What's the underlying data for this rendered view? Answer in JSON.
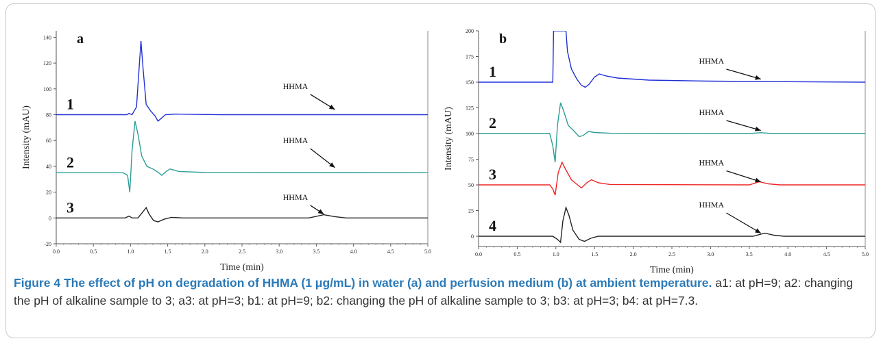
{
  "caption": {
    "label": "Figure 4",
    "title": "The effect of pH on degradation of HHMA (1 μg/mL) in water (a) and perfusion medium (b) at ambient temperature.",
    "text": "a1: at pH=9; a2: changing the pH of alkaline sample to 3; a3: at pH=3; b1: at pH=9; b2: changing the pH of alkaline sample to 3; b3: at pH=3; b4: at pH=7.3."
  },
  "chart_data": [
    {
      "type": "line",
      "panel_label": "a",
      "xlabel": "Time (min)",
      "ylabel": "Intensity (mAU)",
      "xlim": [
        0.0,
        5.0
      ],
      "ylim": [
        -20,
        145
      ],
      "x_ticks": [
        "0.0",
        "0.5",
        "1.0",
        "1.5",
        "2.0",
        "2.5",
        "3.0",
        "3.5",
        "4.0",
        "4.5",
        "5.0"
      ],
      "y_ticks": [
        "-20",
        "0",
        "20",
        "40",
        "60",
        "80",
        "100",
        "120",
        "140"
      ],
      "grid": false,
      "annotation_text": "HHMA",
      "series": [
        {
          "name": "1",
          "color": "#1f2fd6",
          "annotation_y": 100,
          "points": [
            [
              0,
              80
            ],
            [
              0.95,
              80
            ],
            [
              0.98,
              81
            ],
            [
              1.02,
              80
            ],
            [
              1.08,
              86
            ],
            [
              1.12,
              120
            ],
            [
              1.14,
              137
            ],
            [
              1.17,
              115
            ],
            [
              1.21,
              88
            ],
            [
              1.27,
              83
            ],
            [
              1.33,
              79
            ],
            [
              1.37,
              75
            ],
            [
              1.41,
              77
            ],
            [
              1.47,
              80
            ],
            [
              1.6,
              80.5
            ],
            [
              1.8,
              80.3
            ],
            [
              2.2,
              80
            ],
            [
              5,
              80
            ]
          ]
        },
        {
          "name": "2",
          "color": "#2a9d95",
          "annotation_y": 58,
          "points": [
            [
              0,
              35
            ],
            [
              0.9,
              35
            ],
            [
              0.96,
              33
            ],
            [
              0.99,
              20
            ],
            [
              1.02,
              52
            ],
            [
              1.06,
              75
            ],
            [
              1.1,
              65
            ],
            [
              1.15,
              48
            ],
            [
              1.22,
              40
            ],
            [
              1.3,
              38
            ],
            [
              1.38,
              35
            ],
            [
              1.42,
              33
            ],
            [
              1.48,
              36
            ],
            [
              1.53,
              38
            ],
            [
              1.65,
              36
            ],
            [
              2.0,
              35.3
            ],
            [
              5,
              35
            ]
          ]
        },
        {
          "name": "3",
          "color": "#222222",
          "annotation_y": 14,
          "points": [
            [
              0,
              0
            ],
            [
              0.93,
              0
            ],
            [
              0.98,
              1.5
            ],
            [
              1.02,
              0
            ],
            [
              1.1,
              0
            ],
            [
              1.17,
              5
            ],
            [
              1.21,
              8
            ],
            [
              1.25,
              3
            ],
            [
              1.31,
              -2
            ],
            [
              1.37,
              -3
            ],
            [
              1.45,
              -1
            ],
            [
              1.55,
              0.5
            ],
            [
              1.7,
              0
            ],
            [
              3.4,
              0
            ],
            [
              3.6,
              2.5
            ],
            [
              3.75,
              1
            ],
            [
              3.9,
              0
            ],
            [
              5,
              0
            ]
          ]
        }
      ]
    },
    {
      "type": "line",
      "panel_label": "b",
      "xlabel": "Time (min)",
      "ylabel": "Intensity (mAU)",
      "xlim": [
        0.0,
        5.0
      ],
      "ylim": [
        -10,
        200
      ],
      "x_ticks": [
        "0.0",
        "0.5",
        "1.0",
        "1.5",
        "2.0",
        "2.5",
        "3.0",
        "3.5",
        "4.0",
        "4.5",
        "5.0"
      ],
      "y_ticks": [
        "0",
        "25",
        "50",
        "75",
        "100",
        "125",
        "150",
        "175",
        "200"
      ],
      "grid": false,
      "annotation_text": "HHMA",
      "series": [
        {
          "name": "1",
          "color": "#1f2fd6",
          "annotation_y": 168,
          "points": [
            [
              0,
              150
            ],
            [
              0.96,
              150
            ],
            [
              0.97,
              200
            ],
            [
              1.13,
              200
            ],
            [
              1.15,
              180
            ],
            [
              1.2,
              163
            ],
            [
              1.27,
              153
            ],
            [
              1.33,
              147
            ],
            [
              1.38,
              145
            ],
            [
              1.43,
              148
            ],
            [
              1.5,
              155
            ],
            [
              1.56,
              158
            ],
            [
              1.65,
              156
            ],
            [
              1.8,
              154
            ],
            [
              2.2,
              152
            ],
            [
              3,
              151
            ],
            [
              4,
              150.5
            ],
            [
              5,
              150
            ]
          ]
        },
        {
          "name": "2",
          "color": "#2a9d95",
          "annotation_y": 118,
          "points": [
            [
              0,
              100
            ],
            [
              0.92,
              100
            ],
            [
              0.96,
              88
            ],
            [
              0.99,
              72
            ],
            [
              1.02,
              108
            ],
            [
              1.06,
              130
            ],
            [
              1.1,
              122
            ],
            [
              1.16,
              108
            ],
            [
              1.24,
              102
            ],
            [
              1.3,
              97
            ],
            [
              1.35,
              98
            ],
            [
              1.42,
              102
            ],
            [
              1.5,
              101
            ],
            [
              1.7,
              100.3
            ],
            [
              3.5,
              100
            ],
            [
              3.65,
              100.8
            ],
            [
              3.8,
              100
            ],
            [
              5,
              100
            ]
          ]
        },
        {
          "name": "3",
          "color": "#ee2424",
          "annotation_y": 69,
          "points": [
            [
              0,
              50
            ],
            [
              0.92,
              50
            ],
            [
              0.96,
              46
            ],
            [
              0.99,
              40
            ],
            [
              1.03,
              62
            ],
            [
              1.08,
              72
            ],
            [
              1.12,
              66
            ],
            [
              1.2,
              55
            ],
            [
              1.28,
              50
            ],
            [
              1.33,
              47
            ],
            [
              1.4,
              52
            ],
            [
              1.46,
              55
            ],
            [
              1.55,
              52
            ],
            [
              1.7,
              50.4
            ],
            [
              3.5,
              50
            ],
            [
              3.63,
              53
            ],
            [
              3.75,
              51
            ],
            [
              3.9,
              50
            ],
            [
              5,
              50
            ]
          ]
        },
        {
          "name": "4",
          "color": "#222222",
          "annotation_y": 28,
          "points": [
            [
              0,
              0
            ],
            [
              0.96,
              0
            ],
            [
              1.02,
              -3
            ],
            [
              1.06,
              -6
            ],
            [
              1.09,
              15
            ],
            [
              1.13,
              28
            ],
            [
              1.17,
              20
            ],
            [
              1.22,
              6
            ],
            [
              1.3,
              -3
            ],
            [
              1.37,
              -5
            ],
            [
              1.45,
              -2
            ],
            [
              1.55,
              0
            ],
            [
              3.55,
              0
            ],
            [
              3.7,
              3
            ],
            [
              3.82,
              1
            ],
            [
              3.95,
              0
            ],
            [
              5,
              0
            ]
          ]
        }
      ]
    }
  ]
}
